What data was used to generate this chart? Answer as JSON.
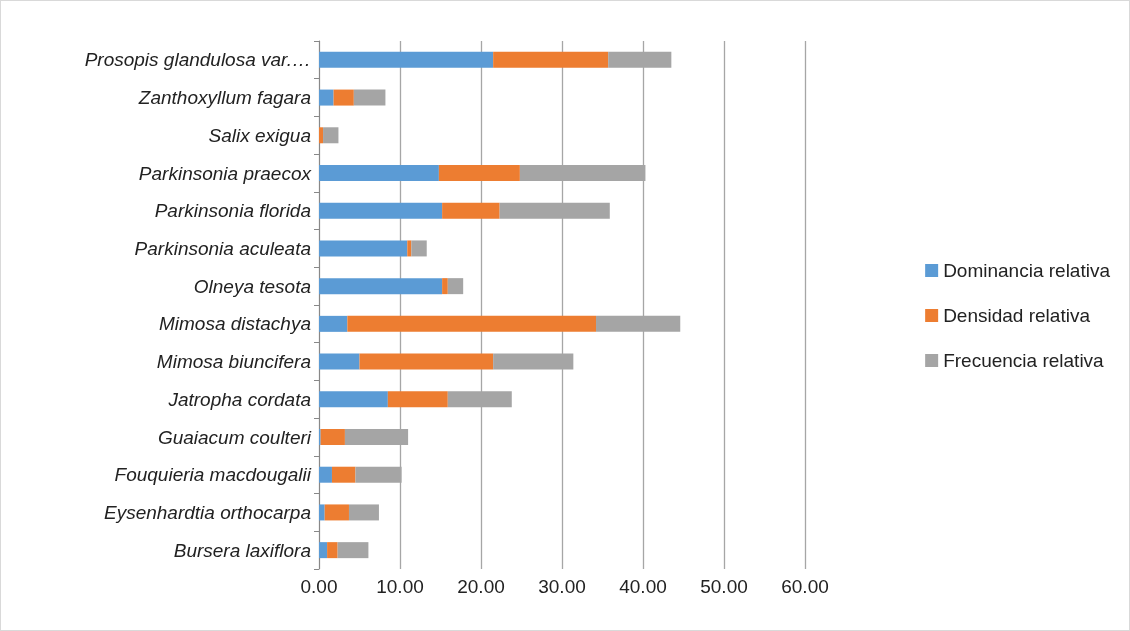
{
  "chart_data": {
    "type": "bar",
    "orientation": "horizontal",
    "stacked": true,
    "categories": [
      "Prosopis glandulosa var.…",
      "Zanthoxyllum fagara",
      "Salix exigua",
      "Parkinsonia praecox",
      "Parkinsonia florida",
      "Parkinsonia aculeata",
      "Olneya tesota",
      "Mimosa distachya",
      "Mimosa biuncifera",
      "Jatropha cordata",
      "Guaiacum coulteri",
      "Fouquieria macdougalii",
      "Eysenhardtia orthocarpa",
      "Bursera laxiflora"
    ],
    "series": [
      {
        "name": "Dominancia relativa",
        "color": "#5b9bd5",
        "values": [
          21.5,
          1.8,
          0,
          14.8,
          15.2,
          10.9,
          15.2,
          3.5,
          5.0,
          8.5,
          0.2,
          1.6,
          0.7,
          1.0
        ]
      },
      {
        "name": "Densidad relativa",
        "color": "#ed7d31",
        "values": [
          14.2,
          2.5,
          0.5,
          10.0,
          7.1,
          0.5,
          0.7,
          30.7,
          16.5,
          7.4,
          3.0,
          2.9,
          3.0,
          1.3
        ]
      },
      {
        "name": "Frecuencia relativa",
        "color": "#a5a5a5",
        "values": [
          7.8,
          3.9,
          1.9,
          15.5,
          13.6,
          1.9,
          1.9,
          10.4,
          9.9,
          7.9,
          7.8,
          5.7,
          3.7,
          3.8
        ]
      }
    ],
    "xlim": [
      0,
      60
    ],
    "xticks": [
      {
        "value": 0,
        "label": "0.00"
      },
      {
        "value": 10,
        "label": "10.00"
      },
      {
        "value": 20,
        "label": "20.00"
      },
      {
        "value": 30,
        "label": "30.00"
      },
      {
        "value": 40,
        "label": "40.00"
      },
      {
        "value": 50,
        "label": "50.00"
      },
      {
        "value": 60,
        "label": "60.00"
      }
    ],
    "grid": "x",
    "legend": "right"
  }
}
